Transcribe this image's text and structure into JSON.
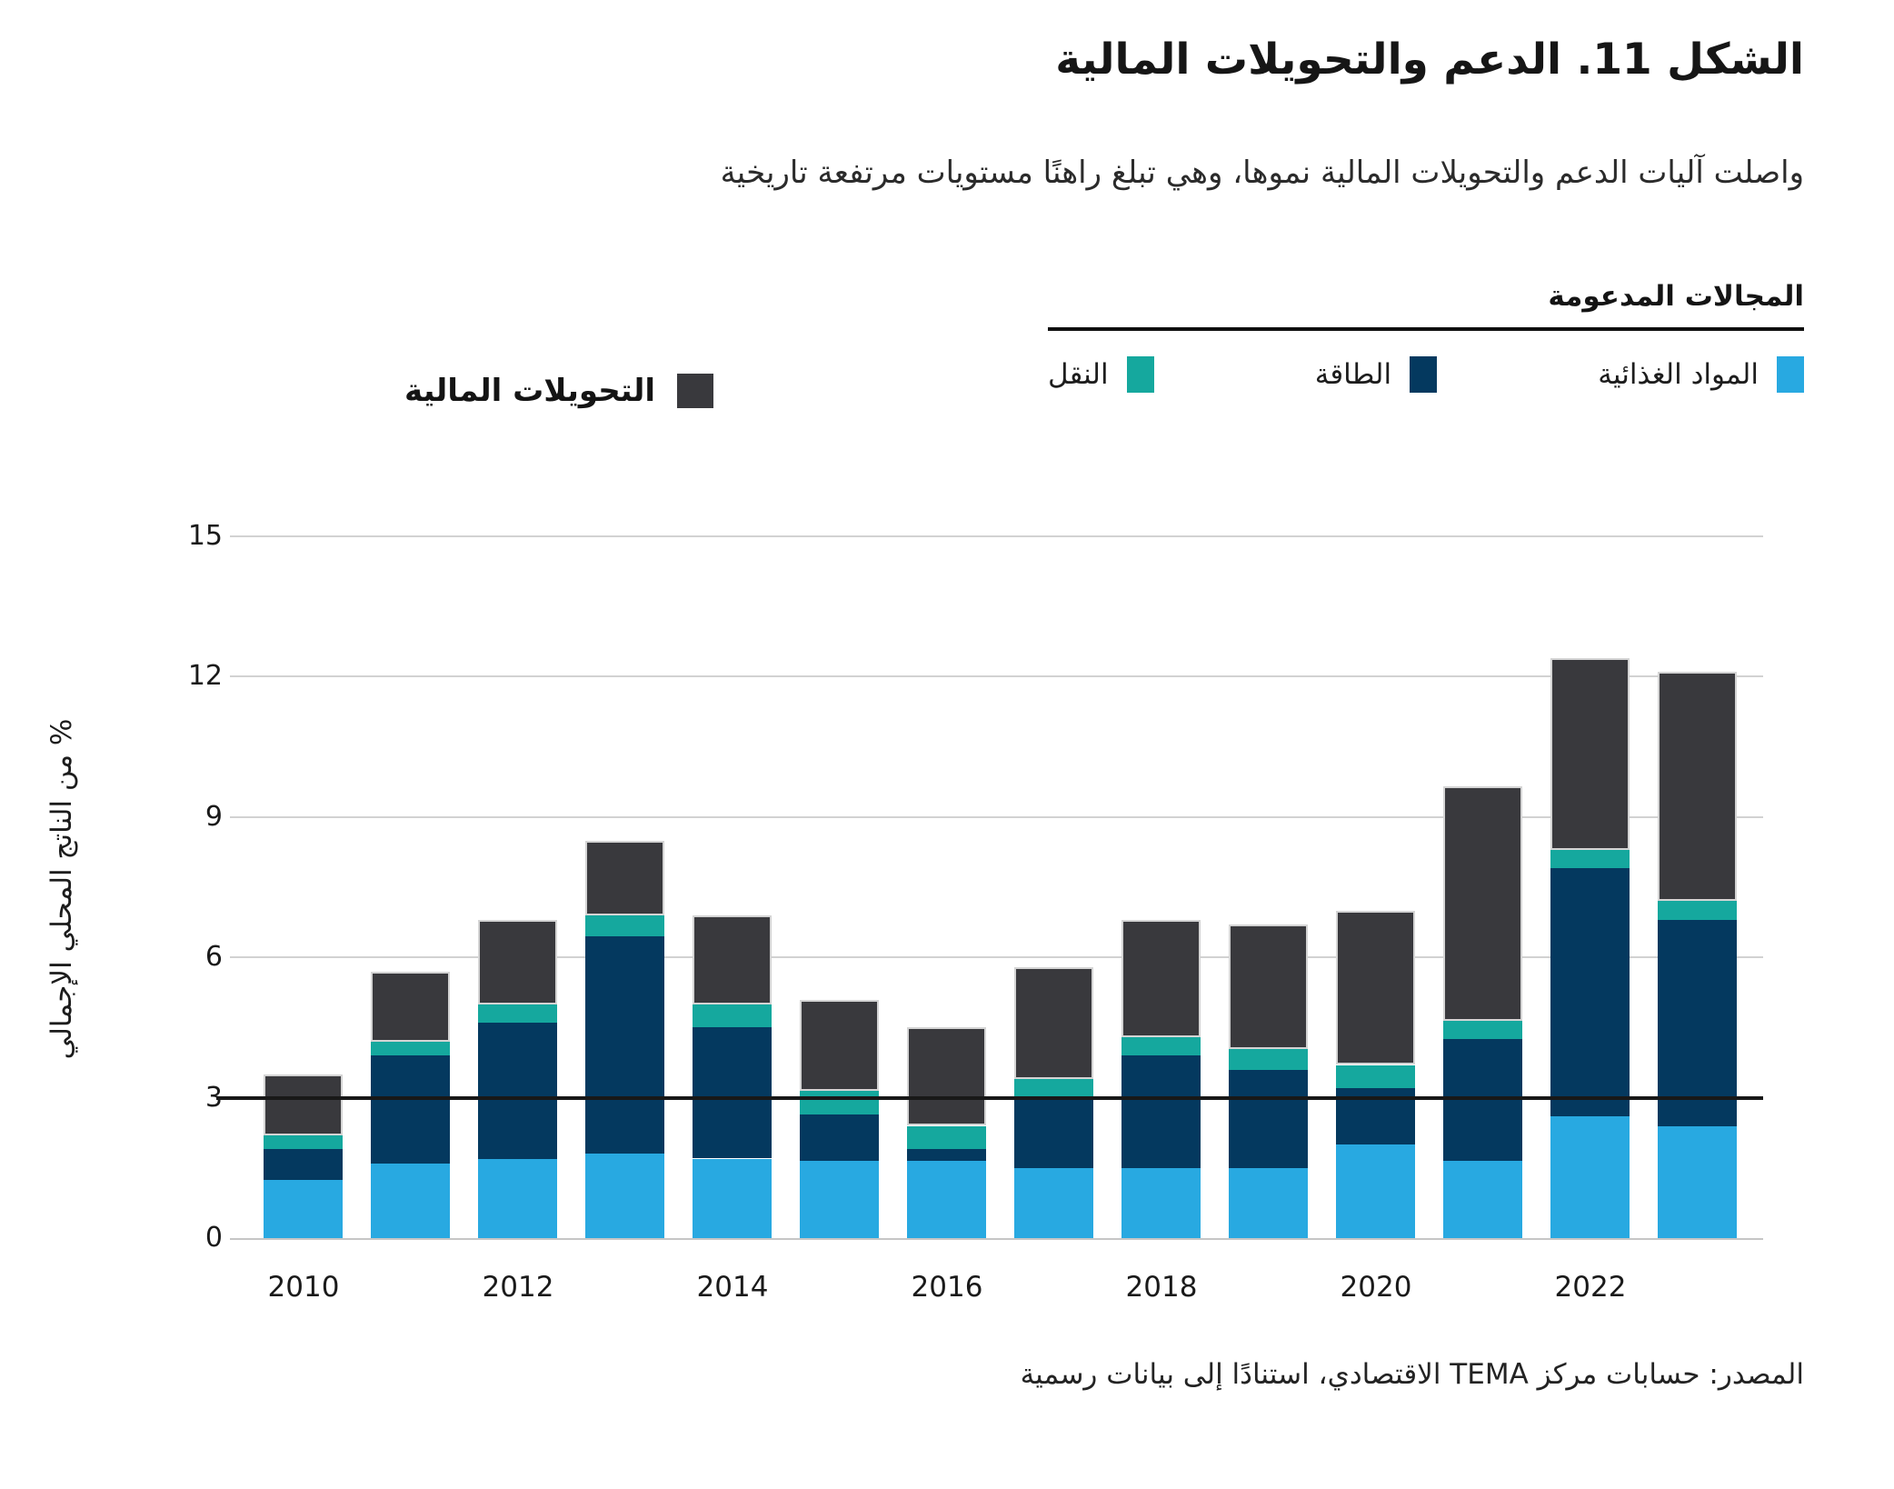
{
  "title": "الشكل 11. الدعم والتحويلات المالية",
  "subtitle": "واصلت آليات الدعم والتحويلات المالية نموها، وهي تبلغ راهنًا مستويات مرتفعة تاريخية",
  "legend": {
    "areas_title": "المجالات المدعومة",
    "areas": [
      {
        "key": "food",
        "label": "المواد الغذائية",
        "color": "#28A9E1"
      },
      {
        "key": "energy",
        "label": "الطاقة",
        "color": "#04395F"
      },
      {
        "key": "transport",
        "label": "النقل",
        "color": "#15A89E"
      }
    ],
    "transfers": {
      "key": "transfers",
      "label": "التحويلات المالية",
      "color": "#39393D"
    }
  },
  "source": "المصدر: حسابات مركز TEMA الاقتصادي، استنادًا إلى بيانات رسمية",
  "chart_data": {
    "type": "bar",
    "stacked": true,
    "title": "الشكل 11. الدعم والتحويلات المالية",
    "categories": [
      2010,
      2011,
      2012,
      2013,
      2014,
      2015,
      2016,
      2017,
      2018,
      2019,
      2020,
      2021,
      2022,
      2023
    ],
    "x_tick_labels": [
      "2010",
      "2012",
      "2014",
      "2016",
      "2018",
      "2020",
      "2022"
    ],
    "series": [
      {
        "name": "المواد الغذائية",
        "key": "food",
        "color": "#28A9E1",
        "values": [
          1.25,
          1.6,
          1.7,
          1.8,
          1.7,
          1.65,
          1.65,
          1.5,
          1.5,
          1.5,
          2.0,
          1.65,
          2.6,
          2.4
        ]
      },
      {
        "name": "الطاقة",
        "key": "energy",
        "color": "#04395F",
        "values": [
          0.65,
          2.3,
          2.9,
          4.65,
          2.8,
          1.0,
          0.25,
          1.5,
          2.4,
          2.1,
          1.2,
          2.6,
          5.3,
          4.4
        ]
      },
      {
        "name": "النقل",
        "key": "transport",
        "color": "#15A89E",
        "values": [
          0.3,
          0.3,
          0.4,
          0.45,
          0.5,
          0.5,
          0.5,
          0.4,
          0.4,
          0.45,
          0.5,
          0.4,
          0.4,
          0.4
        ]
      },
      {
        "name": "التحويلات المالية",
        "key": "transfers",
        "color": "#39393D",
        "values": [
          1.3,
          1.5,
          1.8,
          1.6,
          1.9,
          1.95,
          2.1,
          2.4,
          2.5,
          2.65,
          3.3,
          5.0,
          4.1,
          4.9
        ]
      }
    ],
    "totals": [
      3.5,
      5.7,
      6.8,
      8.5,
      6.9,
      5.1,
      4.5,
      5.8,
      6.8,
      6.7,
      7.0,
      9.65,
      12.4,
      12.1
    ],
    "xlabel": "",
    "ylabel": "% من الناتج المحلي الإجمالي",
    "yticks": [
      0,
      3,
      6,
      9,
      12,
      15
    ],
    "ylim": [
      0,
      15
    ],
    "reference_line": 3,
    "grid": true,
    "gridline_color": "#d2d2d2",
    "reference_line_color": "#181818",
    "legend_position": "top"
  }
}
